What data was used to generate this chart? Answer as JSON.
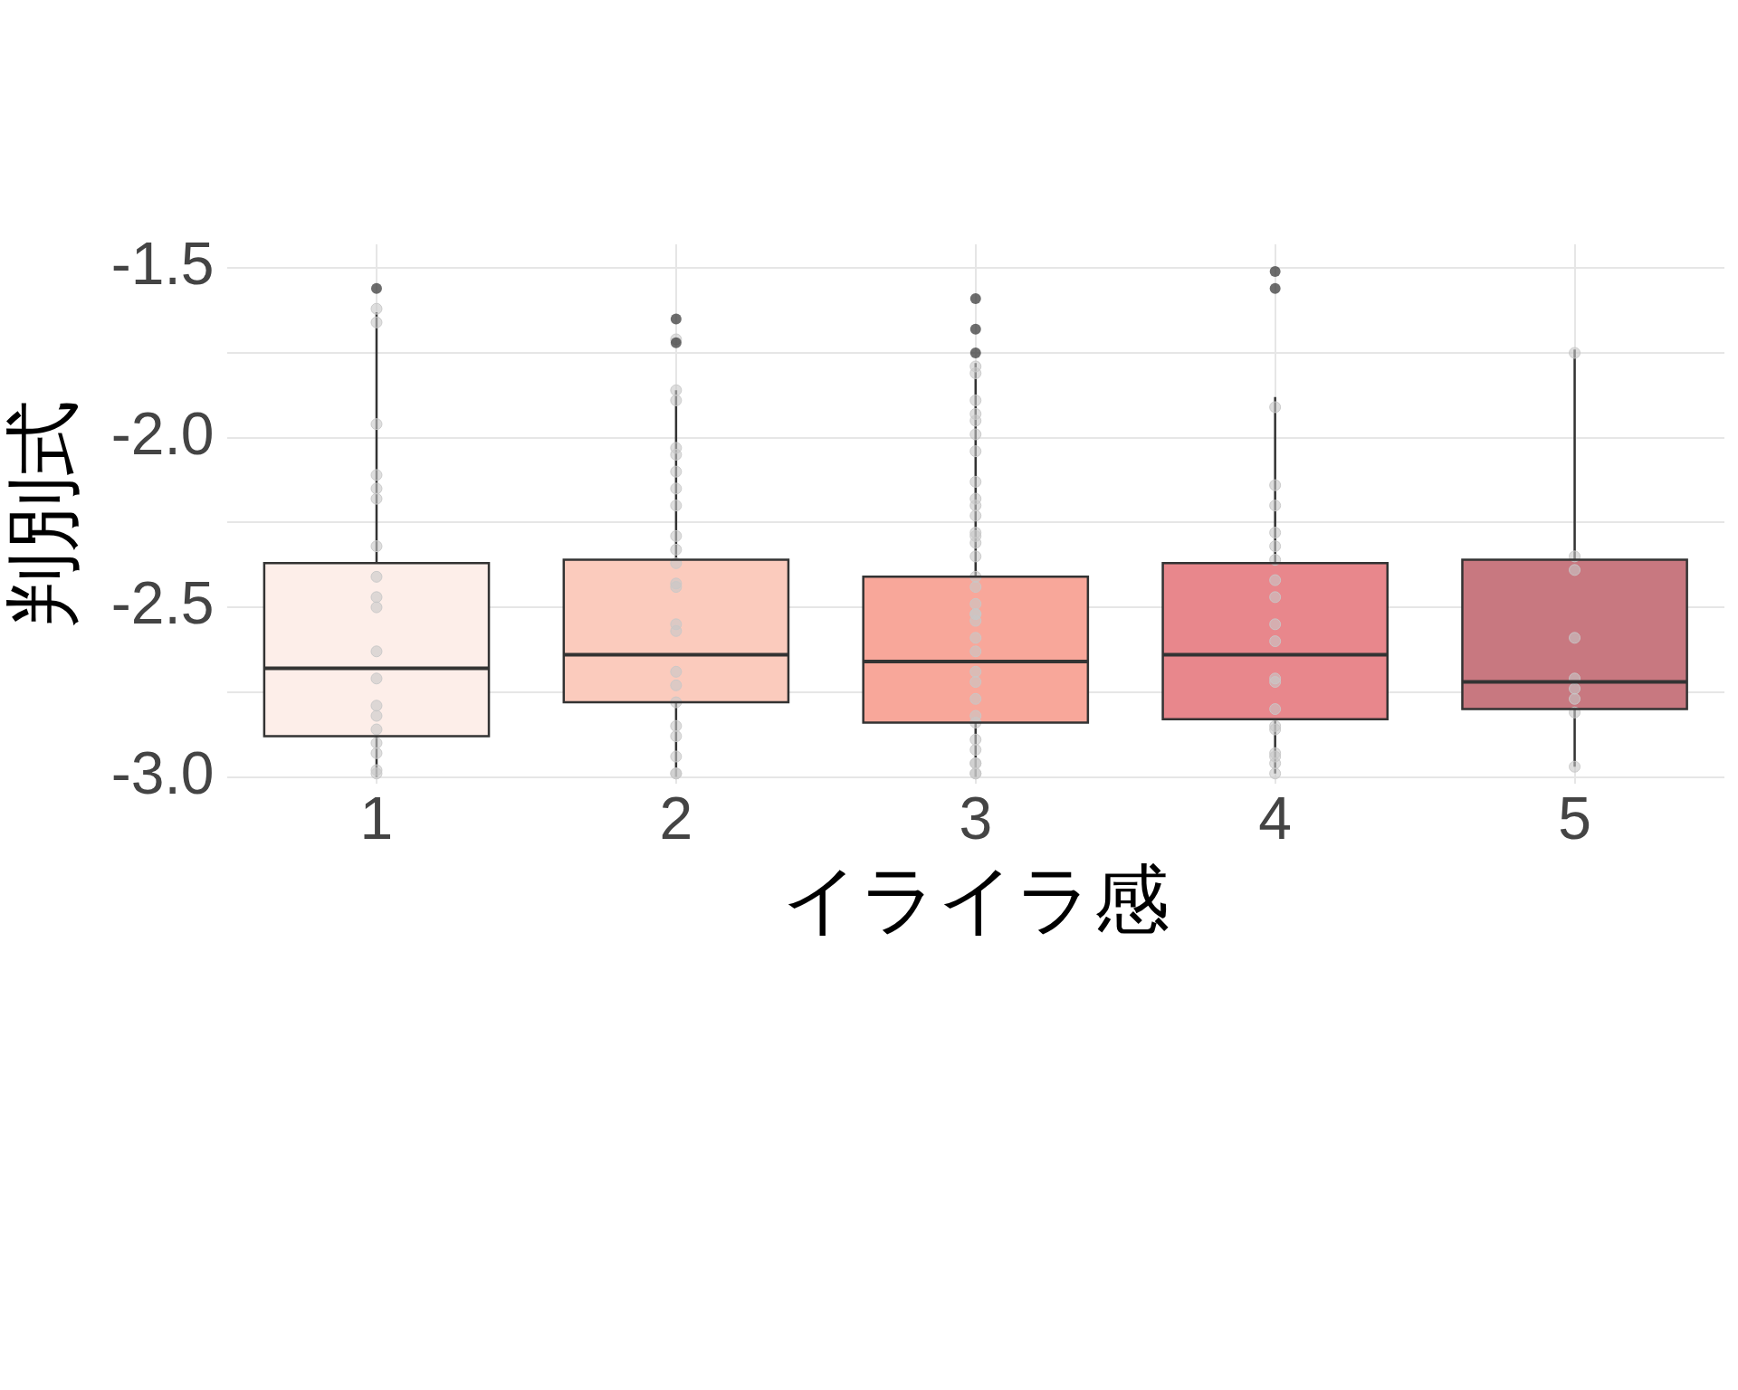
{
  "chart_data": {
    "type": "box",
    "xlabel": "イライラ感",
    "ylabel": "判別式",
    "categories": [
      "1",
      "2",
      "3",
      "4",
      "5"
    ],
    "ylim": [
      -3.02,
      -1.43
    ],
    "yticks": [
      {
        "value": -3.0,
        "label": "-3.0"
      },
      {
        "value": -2.75,
        "label": null
      },
      {
        "value": -2.5,
        "label": "-2.5"
      },
      {
        "value": -2.25,
        "label": null
      },
      {
        "value": -2.0,
        "label": "-2.0"
      },
      {
        "value": -1.75,
        "label": null
      },
      {
        "value": -1.5,
        "label": "-1.5"
      }
    ],
    "grid": true,
    "series": [
      {
        "type": "box",
        "colors": [
          "#fdeee9",
          "#fbcbbd",
          "#f8a79a",
          "#e8878c",
          "#c87880"
        ],
        "boxes": [
          {
            "low": -3.0,
            "q1": -2.88,
            "median": -2.68,
            "q3": -2.37,
            "high": -1.63,
            "outliers": [
              -1.56
            ]
          },
          {
            "low": -3.0,
            "q1": -2.78,
            "median": -2.64,
            "q3": -2.36,
            "high": -1.86,
            "outliers": [
              -1.65,
              -1.72
            ]
          },
          {
            "low": -3.0,
            "q1": -2.84,
            "median": -2.66,
            "q3": -2.41,
            "high": -1.78,
            "outliers": [
              -1.59,
              -1.68,
              -1.75
            ]
          },
          {
            "low": -2.99,
            "q1": -2.83,
            "median": -2.64,
            "q3": -2.37,
            "high": -1.88,
            "outliers": [
              -1.51,
              -1.56
            ]
          },
          {
            "low": -2.97,
            "q1": -2.8,
            "median": -2.72,
            "q3": -2.36,
            "high": -1.74
          }
        ]
      },
      {
        "type": "scatter",
        "color": "#c8c8c8",
        "marker": "circle",
        "x": [
          "1",
          "1",
          "1",
          "1",
          "1",
          "1",
          "1",
          "1",
          "1",
          "1",
          "1",
          "1",
          "1",
          "1",
          "1",
          "1",
          "1",
          "1",
          "1",
          "2",
          "2",
          "2",
          "2",
          "2",
          "2",
          "2",
          "2",
          "2",
          "2",
          "2",
          "2",
          "2",
          "2",
          "2",
          "2",
          "2",
          "2",
          "2",
          "2",
          "2",
          "2",
          "2",
          "3",
          "3",
          "3",
          "3",
          "3",
          "3",
          "3",
          "3",
          "3",
          "3",
          "3",
          "3",
          "3",
          "3",
          "3",
          "3",
          "3",
          "3",
          "3",
          "3",
          "3",
          "3",
          "3",
          "3",
          "3",
          "3",
          "3",
          "3",
          "3",
          "3",
          "3",
          "3",
          "3",
          "3",
          "4",
          "4",
          "4",
          "4",
          "4",
          "4",
          "4",
          "4",
          "4",
          "4",
          "4",
          "4",
          "4",
          "4",
          "4",
          "4",
          "4",
          "4",
          "4",
          "5",
          "5",
          "5",
          "5",
          "5",
          "5",
          "5",
          "5",
          "5"
        ],
        "values": [
          -1.62,
          -1.66,
          -1.96,
          -2.11,
          -2.15,
          -2.18,
          -2.32,
          -2.41,
          -2.47,
          -2.5,
          -2.63,
          -2.71,
          -2.82,
          -2.79,
          -2.86,
          -2.9,
          -2.93,
          -2.98,
          -2.99,
          -1.89,
          -1.86,
          -1.71,
          -2.03,
          -2.05,
          -2.1,
          -2.15,
          -2.2,
          -2.29,
          -2.33,
          -2.37,
          -2.43,
          -2.44,
          -2.55,
          -2.57,
          -2.69,
          -2.73,
          -2.78,
          -2.85,
          -2.88,
          -2.94,
          -2.99,
          -2.99,
          -1.79,
          -1.81,
          -1.89,
          -1.93,
          -1.95,
          -1.99,
          -2.04,
          -2.13,
          -2.18,
          -2.2,
          -2.23,
          -2.28,
          -2.31,
          -2.29,
          -2.35,
          -2.41,
          -2.44,
          -2.49,
          -2.52,
          -2.52,
          -2.54,
          -2.59,
          -2.63,
          -2.69,
          -2.72,
          -2.77,
          -2.82,
          -2.84,
          -2.89,
          -2.92,
          -2.96,
          -2.96,
          -2.99,
          -2.99,
          -1.91,
          -2.14,
          -2.2,
          -2.28,
          -2.32,
          -2.36,
          -2.42,
          -2.47,
          -2.55,
          -2.6,
          -2.71,
          -2.72,
          -2.8,
          -2.85,
          -2.86,
          -2.93,
          -2.94,
          -2.96,
          -2.99,
          -1.75,
          -2.35,
          -2.39,
          -2.59,
          -2.71,
          -2.74,
          -2.77,
          -2.81,
          -2.97
        ]
      }
    ]
  }
}
